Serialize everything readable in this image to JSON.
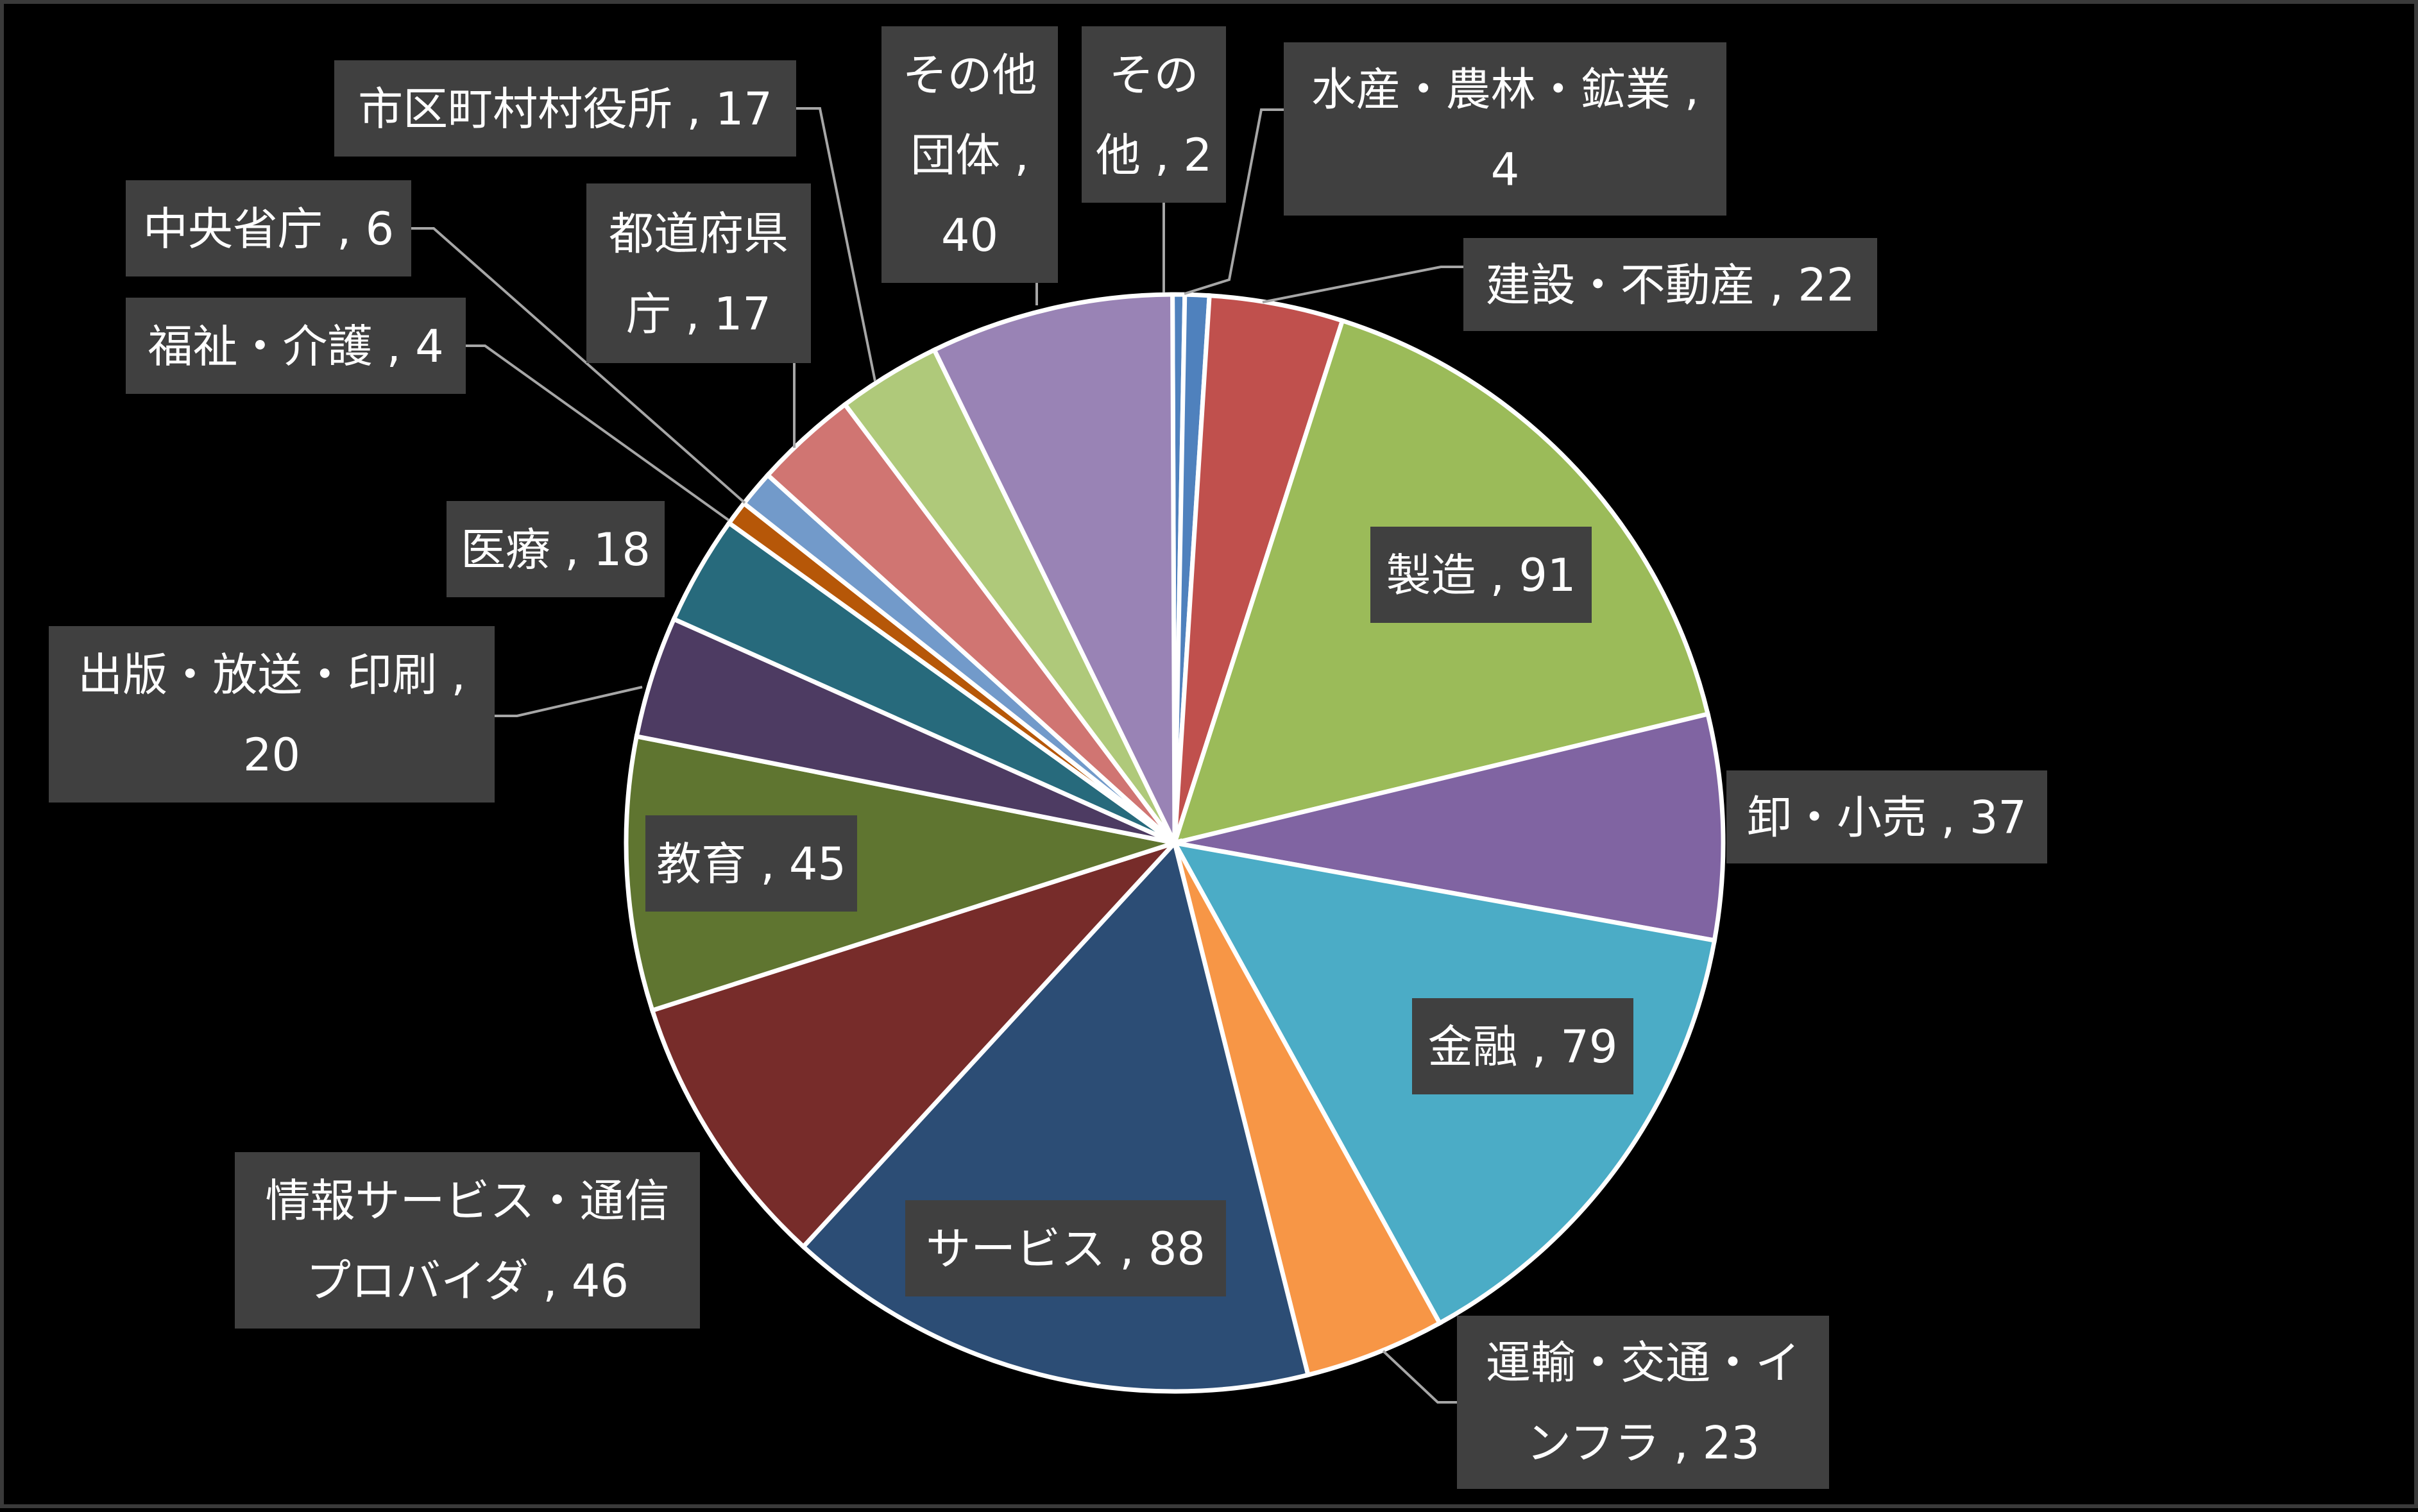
{
  "chart_data": {
    "type": "pie",
    "title": "",
    "legend": "none",
    "slices": [
      {
        "label": "その他",
        "value": 2,
        "color": "#4f81bd",
        "text": "その他 , 2",
        "text_lines": [
          "その",
          "他 , 2"
        ]
      },
      {
        "label": "水産・農林・鉱業",
        "value": 4,
        "color": "#4f81bd",
        "text": "水産・農林・鉱業 , 4",
        "text_lines": [
          "水産・農林・鉱業 ,",
          "4"
        ]
      },
      {
        "label": "建設・不動産",
        "value": 22,
        "color": "#c0504d",
        "text": "建設・不動産 , 22",
        "text_lines": [
          "建設・不動産 , 22"
        ]
      },
      {
        "label": "製造",
        "value": 91,
        "color": "#9bbb59",
        "text": "製造 , 91",
        "text_lines": [
          "製造 , 91"
        ]
      },
      {
        "label": "卸・小売",
        "value": 37,
        "color": "#8064a2",
        "text": "卸・小売 , 37",
        "text_lines": [
          "卸・小売 , 37"
        ]
      },
      {
        "label": "金融",
        "value": 79,
        "color": "#4bacc6",
        "text": "金融 , 79",
        "text_lines": [
          "金融 , 79"
        ]
      },
      {
        "label": "運輸・交通・インフラ",
        "value": 23,
        "color": "#f79646",
        "text": "運輸・交通・インフラ , 23",
        "text_lines": [
          "運輸・交通・イ",
          "ンフラ , 23"
        ]
      },
      {
        "label": "サービス",
        "value": 88,
        "color": "#2c4d75",
        "text": "サービス , 88",
        "text_lines": [
          "サービス , 88"
        ]
      },
      {
        "label": "情報サービス・通信プロバイダ",
        "value": 46,
        "color": "#772c2a",
        "text": "情報サービス・通信プロバイダ , 46",
        "text_lines": [
          "情報サービス・通信",
          "プロバイダ , 46"
        ]
      },
      {
        "label": "教育",
        "value": 45,
        "color": "#5f7530",
        "text": "教育 , 45",
        "text_lines": [
          "教育 , 45"
        ]
      },
      {
        "label": "出版・放送・印刷",
        "value": 20,
        "color": "#4d3b62",
        "text": "出版・放送・印刷 , 20",
        "text_lines": [
          "出版・放送・印刷 ,",
          "20"
        ]
      },
      {
        "label": "医療",
        "value": 18,
        "color": "#276a7c",
        "text": "医療 , 18",
        "text_lines": [
          "医療 , 18"
        ]
      },
      {
        "label": "福祉・介護",
        "value": 4,
        "color": "#b65708",
        "text": "福祉・介護 , 4",
        "text_lines": [
          "福祉・介護 , 4"
        ]
      },
      {
        "label": "中央省庁",
        "value": 6,
        "color": "#729aca",
        "text": "中央省庁 , 6",
        "text_lines": [
          "中央省庁 , 6"
        ]
      },
      {
        "label": "都道府県庁",
        "value": 17,
        "color": "#d07572",
        "text": "都道府県庁 , 17",
        "text_lines": [
          "都道府県",
          "庁 , 17"
        ]
      },
      {
        "label": "市区町村村役所",
        "value": 17,
        "color": "#afc97a",
        "text": "市区町村村役所 , 17",
        "text_lines": [
          "市区町村村役所 , 17"
        ]
      },
      {
        "label": "その他団体",
        "value": 40,
        "color": "#9983b5",
        "text": "その他団体 , 40",
        "text_lines": [
          "その他",
          "団体 ,",
          "40"
        ]
      }
    ]
  }
}
